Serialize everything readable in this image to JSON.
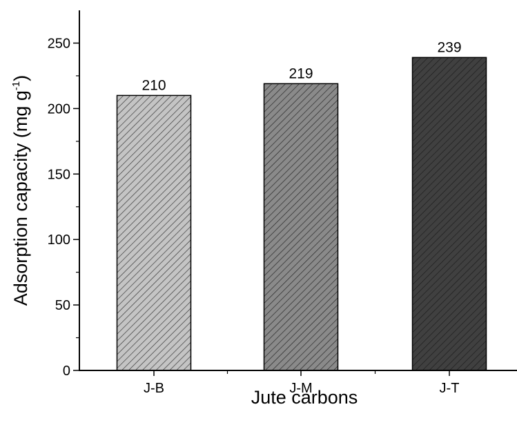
{
  "chart_data": {
    "type": "bar",
    "categories": [
      "J-B",
      "J-M",
      "J-T"
    ],
    "values": [
      210,
      219,
      239
    ],
    "data_labels": [
      "210",
      "219",
      "239"
    ],
    "bar_colors": [
      "#c4c4c4",
      "#8a8a8a",
      "#404040"
    ],
    "hatch": "diagonal",
    "xlabel": "Jute carbons",
    "ylabel": {
      "main": "Adsorption capacity (mg g",
      "superscript": "-1",
      "close": ")"
    },
    "ylim": [
      0,
      275
    ],
    "yticks": [
      0,
      50,
      100,
      150,
      200,
      250
    ],
    "grid": false,
    "legend": "none"
  }
}
